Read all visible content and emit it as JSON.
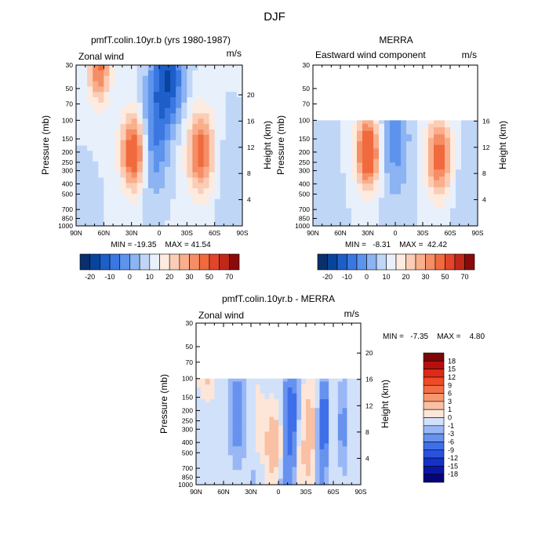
{
  "figure": {
    "title": "DJF"
  },
  "colors": {
    "full": [
      "#08306b",
      "#08449c",
      "#1d5ec8",
      "#3a77e0",
      "#5d93ec",
      "#8cb3f2",
      "#c0d6f7",
      "#e8f0fc",
      "#fdebdf",
      "#fbcdb6",
      "#f9ae8c",
      "#f58d65",
      "#f06a3e",
      "#e2452a",
      "#c0281a",
      "#8a0a0a"
    ],
    "diff": [
      "#06047a",
      "#0a17a6",
      "#1432c8",
      "#2851de",
      "#3f6fe8",
      "#6792ef",
      "#9ab7f5",
      "#d1e1fa",
      "#fde6d8",
      "#f9c0a3",
      "#f6976f",
      "#f36e45",
      "#ee4b26",
      "#de2a18",
      "#b51010",
      "#7d0606"
    ]
  },
  "chart_data": [
    {
      "type": "heatmap",
      "title": "pmfT.colin.10yr.b (yrs 1980-1987)",
      "subtitle_left": "Zonal wind",
      "units": "m/s",
      "xlabel": "",
      "ylabel": "Pressure (mb)",
      "y2label": "Height (km)",
      "x_ticks": [
        "90N",
        "60N",
        "30N",
        "0",
        "30S",
        "60S",
        "90S"
      ],
      "y_ticks": [
        30,
        50,
        70,
        100,
        150,
        200,
        250,
        300,
        400,
        500,
        700,
        850,
        1000
      ],
      "y2_ticks": [
        4,
        8,
        12,
        16,
        20
      ],
      "stats": "MIN = -19.35    MAX = 41.54",
      "colorbar_ticks": [
        "-20",
        "-10",
        "0",
        "10",
        "20",
        "30",
        "50",
        "70"
      ],
      "data_ptop": 30,
      "features": [
        {
          "lat": 28,
          "p": 200,
          "value": 40
        },
        {
          "lat": -45,
          "p": 200,
          "value": 34
        },
        {
          "lat": 65,
          "p": 30,
          "value": 32
        },
        {
          "lat": -10,
          "p": 40,
          "value": -19
        },
        {
          "lat": 5,
          "p": 150,
          "value": -10
        }
      ]
    },
    {
      "type": "heatmap",
      "title": "MERRA",
      "subtitle_left": "Eastward wind component",
      "units": "m/s",
      "xlabel": "",
      "ylabel": "Pressure (mb)",
      "y2label": "Height (km)",
      "x_ticks": [
        "90N",
        "60N",
        "30N",
        "0",
        "30S",
        "60S",
        "90S"
      ],
      "y_ticks": [
        30,
        50,
        70,
        100,
        150,
        200,
        250,
        300,
        400,
        500,
        700,
        850,
        1000
      ],
      "y2_ticks": [
        4,
        8,
        12,
        16
      ],
      "stats": "MIN =   -8.31    MAX =  42.42",
      "colorbar_ticks": [
        "-20",
        "-10",
        "0",
        "10",
        "20",
        "30",
        "50",
        "70"
      ],
      "data_ptop": 100,
      "features": [
        {
          "lat": 30,
          "p": 200,
          "value": 42
        },
        {
          "lat": -48,
          "p": 220,
          "value": 34
        },
        {
          "lat": 0,
          "p": 150,
          "value": -8
        }
      ]
    },
    {
      "type": "heatmap",
      "title": "pmfT.colin.10yr.b - MERRA",
      "subtitle_left": "Zonal wind",
      "units": "m/s",
      "xlabel": "",
      "ylabel": "Pressure (mb)",
      "y2label": "Height (km)",
      "x_ticks": [
        "90N",
        "60N",
        "30N",
        "0",
        "30S",
        "60S",
        "90S"
      ],
      "y_ticks": [
        30,
        50,
        70,
        100,
        150,
        200,
        250,
        300,
        400,
        500,
        700,
        850,
        1000
      ],
      "y2_ticks": [
        4,
        8,
        12,
        16,
        20
      ],
      "stats": "MIN =   -7.35    MAX =    4.80",
      "colorbar_levels": [
        "18",
        "15",
        "12",
        "9",
        "6",
        "3",
        "1",
        "0",
        "-1",
        "-3",
        "-6",
        "-9",
        "-12",
        "-15",
        "-18"
      ],
      "data_ptop": 100,
      "features": [
        {
          "lat": 5,
          "p": 400,
          "value": 4.8
        },
        {
          "lat": -35,
          "p": 300,
          "value": 4
        },
        {
          "lat": -50,
          "p": 250,
          "value": -7.35
        },
        {
          "lat": 78,
          "p": 100,
          "value": 3
        }
      ]
    }
  ]
}
